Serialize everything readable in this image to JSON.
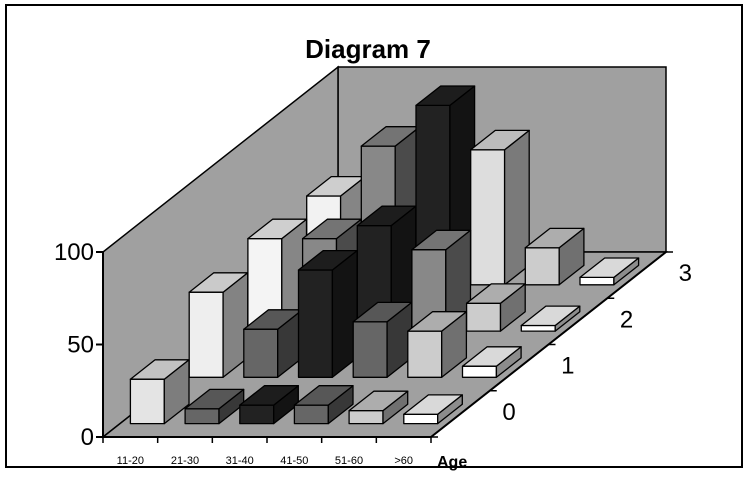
{
  "chart_data": {
    "type": "bar",
    "variant": "3d-grouped-depth",
    "title": "Diagram 7",
    "xlabel": "Age",
    "ylabel": "",
    "categories": [
      "11-20",
      "21-30",
      "31-40",
      "41-50",
      "51-60",
      ">60"
    ],
    "series": [
      {
        "label": "0",
        "values": [
          24,
          8,
          10,
          10,
          7,
          5
        ]
      },
      {
        "label": "1",
        "values": [
          46,
          26,
          58,
          30,
          25,
          6
        ]
      },
      {
        "label": "2",
        "values": [
          50,
          50,
          57,
          44,
          15,
          3
        ]
      },
      {
        "label": "3",
        "values": [
          48,
          75,
          97,
          73,
          20,
          4
        ]
      }
    ],
    "series_colors": [
      "#bbbbbb",
      "#777777",
      "#222222",
      "#444444",
      "#aaaaaa",
      "#ffffff"
    ],
    "cell_colors": [
      [
        "#e4e4e4",
        "#666666",
        "#222222",
        "#666666",
        "#cccccc",
        "#ffffff"
      ],
      [
        "#eeeeee",
        "#666666",
        "#222222",
        "#666666",
        "#cccccc",
        "#ffffff"
      ],
      [
        "#f4f4f4",
        "#888888",
        "#222222",
        "#888888",
        "#cccccc",
        "#ffffff"
      ],
      [
        "#f2f2f2",
        "#888888",
        "#222222",
        "#dddddd",
        "#cccccc",
        "#ffffff"
      ]
    ],
    "yticks": [
      0,
      50,
      100
    ],
    "ylim": [
      0,
      100
    ],
    "wall_color": "#a0a0a0",
    "floor_color": "#a0a0a0",
    "grid": false,
    "legend": "none"
  }
}
